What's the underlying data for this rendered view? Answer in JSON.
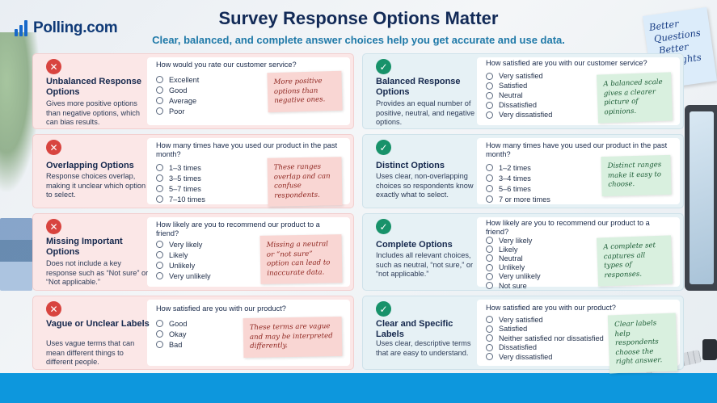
{
  "header": {
    "logo": "Polling.com",
    "title": "Survey Response Options Matter",
    "subtitle": "Clear, balanced, and complete answer choices help you get accurate and use data."
  },
  "corner_note": [
    "Better",
    "Questions",
    "Better",
    "Insights"
  ],
  "colors": {
    "bad_card": "#fbe7e7",
    "good_card": "#e6f1f5",
    "x_icon": "#d8443f",
    "check_icon": "#18926a",
    "bottom_bar": "#0d97dd"
  },
  "bad": [
    {
      "title": "Unbalanced Response Options",
      "desc": "Gives more positive options than negative options, which can bias results.",
      "question": "How would you rate our customer service?",
      "options": [
        "Excellent",
        "Good",
        "Average",
        "Poor"
      ],
      "note": "More positive options than negative ones."
    },
    {
      "title": "Overlapping Options",
      "desc": "Response choices overlap, making it unclear which option to select.",
      "question": "How many times have you used our product in the past month?",
      "options": [
        "1–3 times",
        "3–5 times",
        "5–7 times",
        "7–10 times"
      ],
      "note": "These ranges overlap and can confuse respondents."
    },
    {
      "title": "Missing Important Options",
      "desc": "Does not include a key response such as “Not sure” or “Not applicable.”",
      "question": "How likely are you to recommend our product to a friend?",
      "options": [
        "Very likely",
        "Likely",
        "Unlikely",
        "Very unlikely"
      ],
      "note": "Missing a neutral or “not sure” option can lead to inaccurate data."
    },
    {
      "title": "Vague or Unclear Labels",
      "desc": "Uses vague terms that can mean different things to different people.",
      "question": "How satisfied are you with our product?",
      "options": [
        "Good",
        "Okay",
        "Bad"
      ],
      "note": "These terms are vague and may be interpreted differently."
    }
  ],
  "good": [
    {
      "title": "Balanced Response Options",
      "desc": "Provides an equal number of positive, neutral, and negative options.",
      "question": "How satisfied are you with our customer service?",
      "options": [
        "Very satisfied",
        "Satisfied",
        "Neutral",
        "Dissatisfied",
        "Very dissatisfied"
      ],
      "note": "A balanced scale gives a clearer picture of opinions."
    },
    {
      "title": "Distinct Options",
      "desc": "Uses clear, non-overlapping choices so respondents know exactly what to select.",
      "question": "How many times have you used our product in the past month?",
      "options": [
        "1–2 times",
        "3–4 times",
        "5–6 times",
        "7 or more times"
      ],
      "note": "Distinct ranges make it easy to choose."
    },
    {
      "title": "Complete Options",
      "desc": "Includes all relevant choices, such as neutral, “not sure,” or “not applicable.”",
      "question": "How likely are you to recommend our product to a friend?",
      "options": [
        "Very likely",
        "Likely",
        "Neutral",
        "Unlikely",
        "Very unlikely",
        "Not sure"
      ],
      "note": "A complete set captures all types of responses."
    },
    {
      "title": "Clear and Specific Labels",
      "desc": "Uses clear, descriptive terms that are easy to understand.",
      "question": "How satisfied are you with our product?",
      "options": [
        "Very satisfied",
        "Satisfied",
        "Neither satisfied nor dissatisfied",
        "Dissatisfied",
        "Very dissatisfied"
      ],
      "note": "Clear labels help respondents choose the right answer."
    }
  ]
}
